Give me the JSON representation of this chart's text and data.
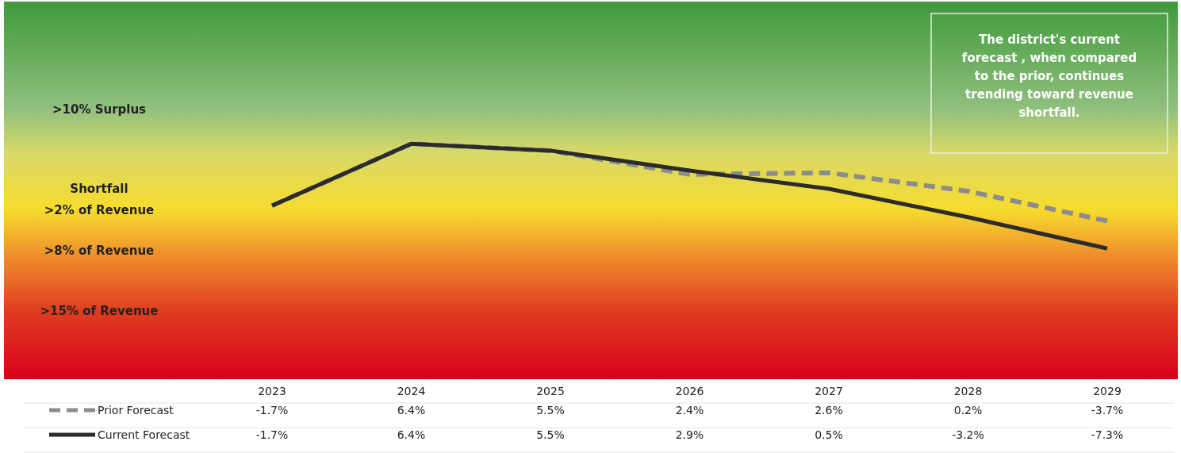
{
  "chart_data": {
    "type": "line",
    "categories": [
      "2023",
      "2024",
      "2025",
      "2026",
      "2027",
      "2028",
      "2029"
    ],
    "ylim": [
      -24.4,
      25
    ],
    "tick_labels": "x",
    "legend": "bottom",
    "marker": "none",
    "series": [
      {
        "name": "Prior Forecast",
        "color": "#8c8c8c",
        "line_style": "dashed",
        "values": [
          -1.7,
          6.4,
          5.5,
          2.4,
          2.6,
          0.2,
          -3.7
        ],
        "value_labels": [
          "-1.7%",
          "6.4%",
          "5.5%",
          "2.4%",
          "2.6%",
          "0.2%",
          "-3.7%"
        ]
      },
      {
        "name": "Current Forecast",
        "color": "#2b2b2b",
        "line_style": "solid",
        "values": [
          -1.7,
          6.4,
          5.5,
          2.9,
          0.5,
          -3.2,
          -7.3
        ],
        "value_labels": [
          "-1.7%",
          "6.4%",
          "5.5%",
          "2.9%",
          "0.5%",
          "-3.2%",
          "-7.3%"
        ]
      }
    ],
    "annotations": [
      "The district's current forecast , when compared to the prior, continues trending toward revenue shortfall.",
      ">10% Surplus",
      "Shortfall",
      ">2% of Revenue",
      ">8% of Revenue",
      ">15% of Revenue"
    ]
  }
}
